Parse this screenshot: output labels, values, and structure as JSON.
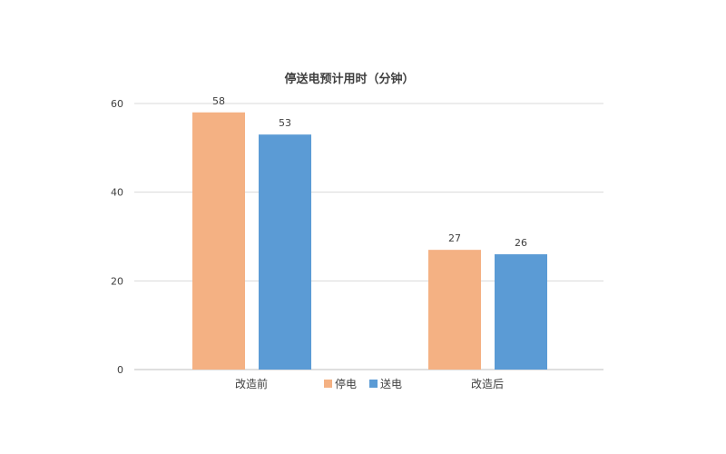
{
  "chart_data": {
    "type": "bar",
    "title": "停送电预计用时（分钟）",
    "xlabel": "",
    "ylabel": "",
    "categories": [
      "改造前",
      "改造后"
    ],
    "series": [
      {
        "name": "停电",
        "values": [
          58,
          27
        ],
        "color": "#F4B183"
      },
      {
        "name": "送电",
        "values": [
          53,
          26
        ],
        "color": "#5B9BD5"
      }
    ],
    "ylim": [
      0,
      60
    ],
    "yticks": [
      0,
      20,
      40,
      60
    ],
    "grid": true,
    "legend_position": "bottom"
  }
}
